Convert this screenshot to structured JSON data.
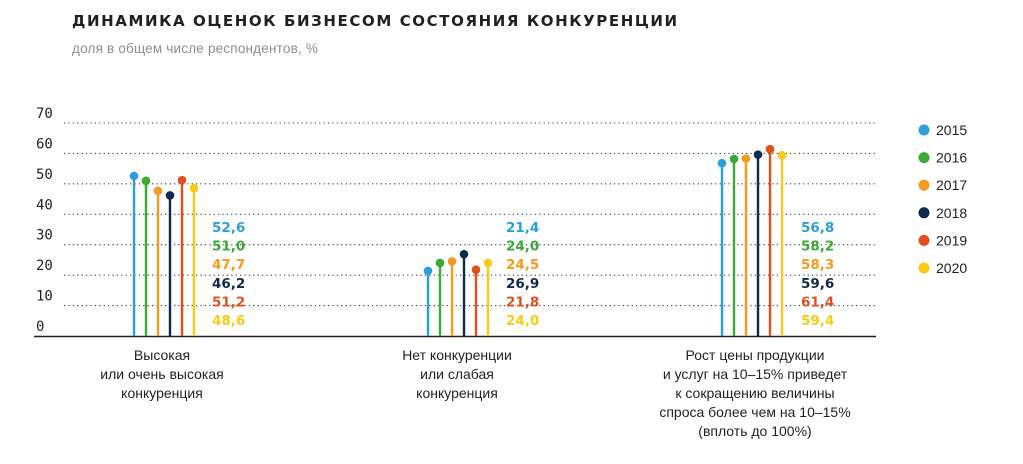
{
  "title": "ДИНАМИКА ОЦЕНОК БИЗНЕСОМ СОСТОЯНИЯ КОНКУРЕНЦИИ",
  "subtitle": "доля в общем числе респондентов, %",
  "chart_data": {
    "type": "bar",
    "style": "lollipop",
    "title": "ДИНАМИКА ОЦЕНОК БИЗНЕСОМ СОСТОЯНИЯ КОНКУРЕНЦИИ",
    "subtitle": "доля в общем числе респондентов, %",
    "ylim": [
      0,
      70
    ],
    "yticks": [
      "0",
      "10",
      "20",
      "30",
      "40",
      "50",
      "60",
      "70"
    ],
    "grid": "dotted horizontal",
    "legend_position": "right",
    "categories": [
      "Высокая\nили очень высокая\nконкуренция",
      "Нет конкуренции\nили слабая\nконкуренция",
      "Рост цены продукции\nи услуг на 10–15% приведет\nк сокращению величины\nспроса более чем на 10–15%\n(вплоть до 100%)"
    ],
    "series": [
      {
        "name": "2015",
        "color": "#2a9fd8",
        "values": [
          52.6,
          21.4,
          56.8
        ],
        "labels": [
          "52,6",
          "21,4",
          "56,8"
        ]
      },
      {
        "name": "2016",
        "color": "#3aa935",
        "values": [
          51.0,
          24.0,
          58.2
        ],
        "labels": [
          "51,0",
          "24,0",
          "58,2"
        ]
      },
      {
        "name": "2017",
        "color": "#f49a1d",
        "values": [
          47.7,
          24.5,
          58.3
        ],
        "labels": [
          "47,7",
          "24,5",
          "58,3"
        ]
      },
      {
        "name": "2018",
        "color": "#0f2a4a",
        "values": [
          46.2,
          26.9,
          59.6
        ],
        "labels": [
          "46,2",
          "26,9",
          "59,6"
        ]
      },
      {
        "name": "2019",
        "color": "#e0501d",
        "values": [
          51.2,
          21.8,
          61.4
        ],
        "labels": [
          "51,2",
          "21,8",
          "61,4"
        ]
      },
      {
        "name": "2020",
        "color": "#f7cc12",
        "values": [
          48.6,
          24.0,
          59.4
        ],
        "labels": [
          "48,6",
          "24,0",
          "59,4"
        ]
      }
    ]
  }
}
